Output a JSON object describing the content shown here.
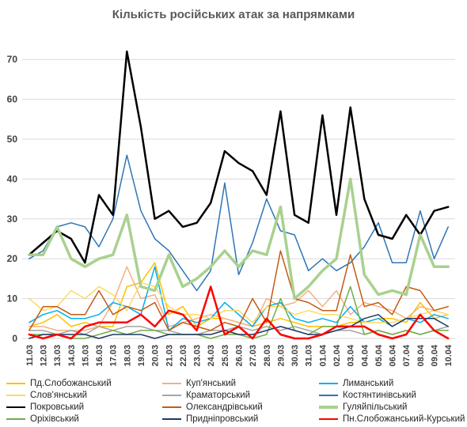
{
  "chart_data": {
    "type": "line",
    "title": "Кількість російських атак за напрямками",
    "xlabel": "",
    "ylabel": "",
    "ylim": [
      0,
      75
    ],
    "yticks": [
      0,
      10,
      20,
      30,
      40,
      50,
      60,
      70
    ],
    "grid": true,
    "legend_position": "bottom",
    "x": [
      "11.03",
      "12.03",
      "13.03",
      "14.03",
      "15.03",
      "16.03",
      "17.03",
      "18.03",
      "19.03",
      "20.03",
      "21.03",
      "22.03",
      "23.03",
      "24.03",
      "25.03",
      "26.03",
      "27.03",
      "28.03",
      "29.03",
      "30.03",
      "31.03",
      "01.04",
      "02.04",
      "03.04",
      "04.04",
      "05.04",
      "06.04",
      "07.04",
      "08.04",
      "09.04",
      "10.04"
    ],
    "series": [
      {
        "name": "Пд.Слобожанський",
        "color": "#ffc000",
        "width": 1.5,
        "values": [
          3,
          4,
          6,
          3,
          4,
          3,
          3,
          13,
          14,
          19,
          6,
          8,
          3,
          5,
          5,
          4,
          3,
          4,
          5,
          4,
          3,
          3,
          3,
          4,
          4,
          5,
          5,
          4,
          9,
          5,
          6
        ]
      },
      {
        "name": "Куп'янський",
        "color": "#f4b183",
        "width": 1.5,
        "values": [
          3,
          3,
          2,
          2,
          2,
          3,
          9,
          18,
          10,
          11,
          3,
          4,
          5,
          6,
          5,
          4,
          3,
          10,
          8,
          9,
          12,
          8,
          12,
          6,
          9,
          8,
          7,
          5,
          8,
          7,
          8
        ]
      },
      {
        "name": "Лиманський",
        "color": "#00b0f0",
        "width": 1.5,
        "values": [
          4,
          6,
          7,
          5,
          5,
          6,
          9,
          8,
          6,
          18,
          2,
          5,
          4,
          5,
          9,
          6,
          3,
          8,
          9,
          5,
          4,
          5,
          4,
          8,
          4,
          5,
          3,
          5,
          4,
          6,
          5
        ]
      },
      {
        "name": "Слов'янський",
        "color": "#ffd966",
        "width": 1.5,
        "values": [
          10,
          7,
          8,
          12,
          10,
          13,
          11,
          7,
          14,
          13,
          8,
          6,
          6,
          5,
          7,
          7,
          4,
          8,
          8,
          6,
          7,
          6,
          6,
          5,
          4,
          4,
          4,
          5,
          6,
          7,
          6
        ]
      },
      {
        "name": "Краматорський",
        "color": "#a5a5a5",
        "width": 1.5,
        "values": [
          2,
          2,
          1,
          2,
          1,
          3,
          2,
          3,
          3,
          2,
          2,
          1,
          1,
          2,
          2,
          3,
          2,
          3,
          2,
          3,
          2,
          1,
          2,
          2,
          1,
          2,
          1,
          2,
          1,
          2,
          3
        ]
      },
      {
        "name": "Костянтинівський",
        "color": "#2e75b6",
        "width": 1.5,
        "values": [
          20,
          22,
          28,
          29,
          28,
          23,
          30,
          46,
          32,
          25,
          22,
          17,
          12,
          17,
          39,
          16,
          24,
          35,
          27,
          26,
          17,
          20,
          17,
          19,
          23,
          29,
          19,
          19,
          32,
          20,
          28
        ]
      },
      {
        "name": "Покровський",
        "color": "#000000",
        "width": 2.5,
        "values": [
          21,
          24,
          27,
          25,
          19,
          36,
          31,
          72,
          53,
          30,
          32,
          28,
          29,
          34,
          47,
          44,
          42,
          36,
          57,
          31,
          29,
          56,
          31,
          58,
          35,
          26,
          25,
          31,
          26,
          32,
          33
        ]
      },
      {
        "name": "Олександрівський",
        "color": "#c55a11",
        "width": 1.5,
        "values": [
          2,
          8,
          8,
          6,
          6,
          12,
          6,
          8,
          7,
          9,
          2,
          4,
          3,
          2,
          4,
          3,
          10,
          4,
          22,
          10,
          9,
          7,
          7,
          21,
          8,
          9,
          6,
          13,
          12,
          7,
          8
        ]
      },
      {
        "name": "Гуляйпільський",
        "color": "#a9d18e",
        "width": 3.5,
        "values": [
          21,
          21,
          28,
          20,
          18,
          20,
          21,
          31,
          13,
          12,
          21,
          13,
          15,
          18,
          22,
          18,
          22,
          21,
          33,
          10,
          13,
          17,
          20,
          40,
          16,
          11,
          12,
          11,
          26,
          18,
          18
        ]
      },
      {
        "name": "Оріхівський",
        "color": "#70ad47",
        "width": 1.5,
        "values": [
          1,
          1,
          1,
          0,
          0,
          1,
          2,
          1,
          2,
          2,
          1,
          1,
          1,
          0,
          1,
          1,
          0,
          1,
          10,
          2,
          1,
          3,
          3,
          13,
          1,
          2,
          1,
          2,
          1,
          2,
          2
        ]
      },
      {
        "name": "Придніпровський",
        "color": "#1f3864",
        "width": 1.5,
        "values": [
          0,
          1,
          1,
          1,
          1,
          0,
          1,
          1,
          1,
          0,
          1,
          1,
          1,
          1,
          2,
          1,
          1,
          2,
          3,
          2,
          1,
          1,
          2,
          3,
          5,
          6,
          3,
          5,
          5,
          5,
          3
        ]
      },
      {
        "name": "Пн.Слобожанський-Курський",
        "color": "#ff0000",
        "width": 2.5,
        "values": [
          1,
          0,
          1,
          0,
          3,
          4,
          4,
          4,
          6,
          3,
          7,
          6,
          2,
          13,
          1,
          3,
          0,
          5,
          1,
          0,
          0,
          1,
          3,
          3,
          3,
          1,
          0,
          1,
          6,
          2,
          0
        ]
      }
    ]
  }
}
